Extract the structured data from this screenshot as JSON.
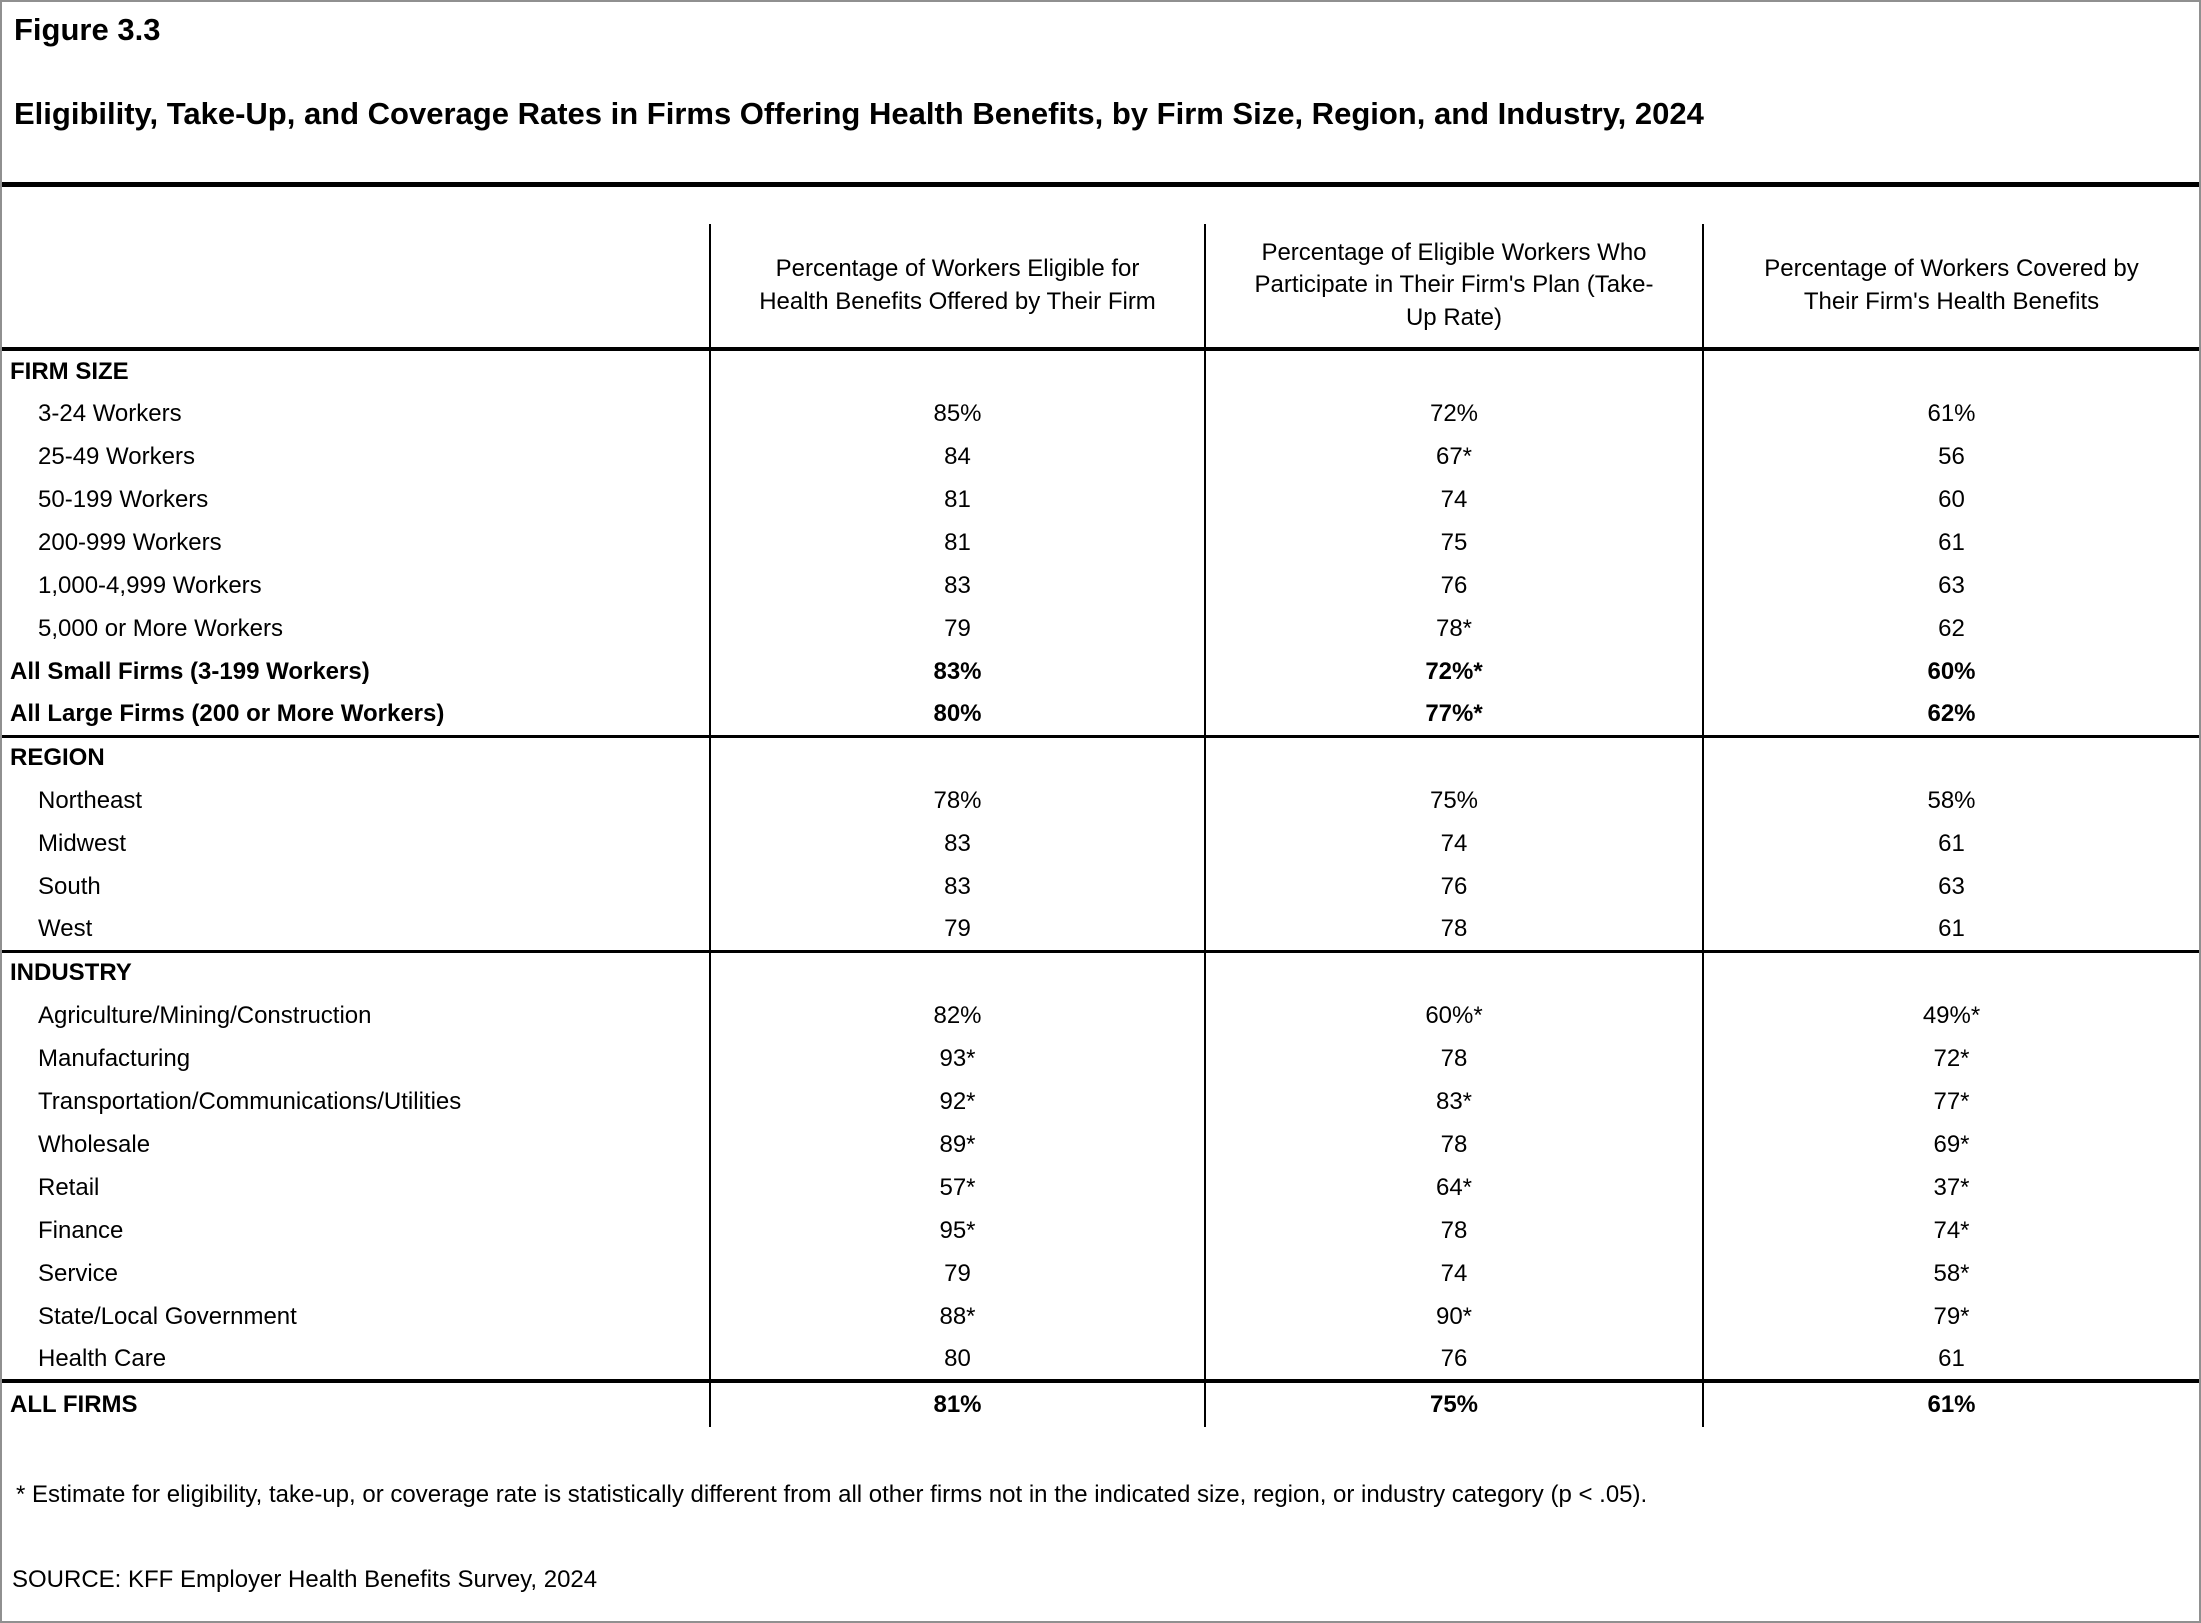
{
  "figure": {
    "label": "Figure 3.3",
    "title": "Eligibility, Take-Up, and Coverage Rates in Firms Offering Health Benefits, by Firm Size, Region, and Industry, 2024"
  },
  "table": {
    "columns": [
      "Percentage of Workers Eligible for Health Benefits Offered by Their Firm",
      "Percentage of Eligible Workers Who Participate in Their Firm's Plan (Take-Up Rate)",
      "Percentage of Workers Covered by Their Firm's Health Benefits"
    ],
    "sections": [
      {
        "name": "FIRM SIZE",
        "rule_after": 3,
        "rows": [
          {
            "label": "3-24 Workers",
            "values": [
              "85%",
              "72%",
              "61%"
            ],
            "bold": false
          },
          {
            "label": "25-49 Workers",
            "values": [
              "84",
              "67*",
              "56"
            ],
            "bold": false
          },
          {
            "label": "50-199 Workers",
            "values": [
              "81",
              "74",
              "60"
            ],
            "bold": false
          },
          {
            "label": "200-999 Workers",
            "values": [
              "81",
              "75",
              "61"
            ],
            "bold": false
          },
          {
            "label": "1,000-4,999 Workers",
            "values": [
              "83",
              "76",
              "63"
            ],
            "bold": false
          },
          {
            "label": "5,000 or More Workers",
            "values": [
              "79",
              "78*",
              "62"
            ],
            "bold": false
          },
          {
            "label": "All Small Firms (3-199 Workers)",
            "values": [
              "83%",
              "72%*",
              "60%"
            ],
            "bold": true
          },
          {
            "label": "All Large Firms (200 or More Workers)",
            "values": [
              "80%",
              "77%*",
              "62%"
            ],
            "bold": true
          }
        ]
      },
      {
        "name": "REGION",
        "rule_after": 3,
        "rows": [
          {
            "label": "Northeast",
            "values": [
              "78%",
              "75%",
              "58%"
            ],
            "bold": false
          },
          {
            "label": "Midwest",
            "values": [
              "83",
              "74",
              "61"
            ],
            "bold": false
          },
          {
            "label": "South",
            "values": [
              "83",
              "76",
              "63"
            ],
            "bold": false
          },
          {
            "label": "West",
            "values": [
              "79",
              "78",
              "61"
            ],
            "bold": false
          }
        ]
      },
      {
        "name": "INDUSTRY",
        "rule_after": 4,
        "rows": [
          {
            "label": "Agriculture/Mining/Construction",
            "values": [
              "82%",
              "60%*",
              "49%*"
            ],
            "bold": false
          },
          {
            "label": "Manufacturing",
            "values": [
              "93*",
              "78",
              "72*"
            ],
            "bold": false
          },
          {
            "label": "Transportation/Communications/Utilities",
            "values": [
              "92*",
              "83*",
              "77*"
            ],
            "bold": false
          },
          {
            "label": "Wholesale",
            "values": [
              "89*",
              "78",
              "69*"
            ],
            "bold": false
          },
          {
            "label": "Retail",
            "values": [
              "57*",
              "64*",
              "37*"
            ],
            "bold": false
          },
          {
            "label": "Finance",
            "values": [
              "95*",
              "78",
              "74*"
            ],
            "bold": false
          },
          {
            "label": "Service",
            "values": [
              "79",
              "74",
              "58*"
            ],
            "bold": false
          },
          {
            "label": "State/Local Government",
            "values": [
              "88*",
              "90*",
              "79*"
            ],
            "bold": false
          },
          {
            "label": "Health Care",
            "values": [
              "80",
              "76",
              "61"
            ],
            "bold": false
          }
        ]
      }
    ],
    "total_row": {
      "label": "ALL FIRMS",
      "values": [
        "81%",
        "75%",
        "61%"
      ]
    }
  },
  "footnote": "* Estimate for eligibility, take-up, or coverage rate is statistically different from all other firms not in the indicated size, region, or industry category (p < .05).",
  "source": "SOURCE: KFF Employer Health Benefits Survey, 2024"
}
